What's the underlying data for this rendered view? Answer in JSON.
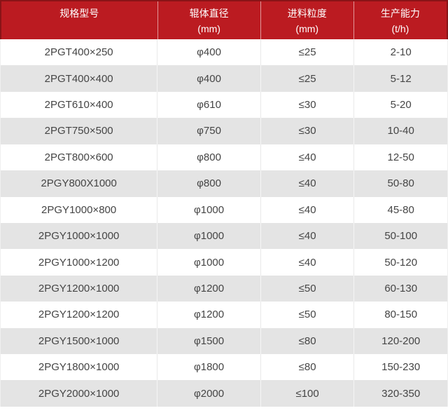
{
  "colors": {
    "header_bg": "#bb1b21",
    "header_border": "#8a1417",
    "header_text": "#ffffff",
    "row_bg": "#ffffff",
    "row_alt_bg": "#e4e4e4",
    "body_text": "#454545",
    "column_divider": "#e9e9e9"
  },
  "chart_data": {
    "type": "table",
    "title": "",
    "columns": [
      {
        "line1": "规格型号",
        "line2": ""
      },
      {
        "line1": "辊体直径",
        "line2": "(mm)"
      },
      {
        "line1": "进料粒度",
        "line2": "(mm)"
      },
      {
        "line1": "生产能力",
        "line2": "(t/h)"
      }
    ],
    "rows": [
      [
        "2PGT400×250",
        "φ400",
        "≤25",
        "2-10"
      ],
      [
        "2PGT400×400",
        "φ400",
        "≤25",
        "5-12"
      ],
      [
        "2PGT610×400",
        "φ610",
        "≤30",
        "5-20"
      ],
      [
        "2PGT750×500",
        "φ750",
        "≤30",
        "10-40"
      ],
      [
        "2PGT800×600",
        "φ800",
        "≤40",
        "12-50"
      ],
      [
        "2PGY800X1000",
        "φ800",
        "≤40",
        "50-80"
      ],
      [
        "2PGY1000×800",
        "φ1000",
        "≤40",
        "45-80"
      ],
      [
        "2PGY1000×1000",
        "φ1000",
        "≤40",
        "50-100"
      ],
      [
        "2PGY1000×1200",
        "φ1000",
        "≤40",
        "50-120"
      ],
      [
        "2PGY1200×1000",
        "φ1200",
        "≤50",
        "60-130"
      ],
      [
        "2PGY1200×1200",
        "φ1200",
        "≤50",
        "80-150"
      ],
      [
        "2PGY1500×1000",
        "φ1500",
        "≤80",
        "120-200"
      ],
      [
        "2PGY1800×1000",
        "φ1800",
        "≤80",
        "150-230"
      ],
      [
        "2PGY2000×1000",
        "φ2000",
        "≤100",
        "320-350"
      ]
    ],
    "layout": {
      "striped": true,
      "first_data_row_background": "white",
      "header_rows": 1
    }
  }
}
